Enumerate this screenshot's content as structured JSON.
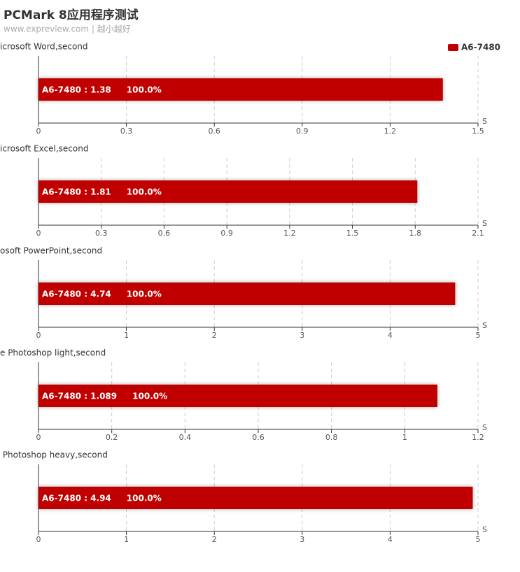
{
  "header": {
    "title": "PCMark 8应用程序测试",
    "subtitle": "www.expreview.com | 越小越好"
  },
  "legend_position": "top-right",
  "chart_data": [
    {
      "type": "bar",
      "orientation": "horizontal",
      "title": "icrosoft Word,second",
      "xlabel": "S",
      "series": [
        {
          "name": "A6-7480",
          "color": "#c00000",
          "values": [
            1.38
          ],
          "value_labels": [
            "A6-7480 : 1.38"
          ],
          "percents": [
            100
          ],
          "percent_labels": [
            "100.0%"
          ]
        }
      ],
      "xlim": [
        0,
        1.5
      ],
      "xticks": [
        0,
        0.3,
        0.6,
        0.9,
        1.2,
        1.5
      ],
      "grid": true
    },
    {
      "type": "bar",
      "orientation": "horizontal",
      "title": "icrosoft Excel,second",
      "xlabel": "S",
      "series": [
        {
          "name": "A6-7480",
          "color": "#c00000",
          "values": [
            1.81
          ],
          "value_labels": [
            "A6-7480 : 1.81"
          ],
          "percents": [
            100
          ],
          "percent_labels": [
            "100.0%"
          ]
        }
      ],
      "xlim": [
        0,
        2.1
      ],
      "xticks": [
        0,
        0.3,
        0.6,
        0.9,
        1.2,
        1.5,
        1.8,
        2.1
      ],
      "grid": true
    },
    {
      "type": "bar",
      "orientation": "horizontal",
      "title": "osoft PowerPoint,second",
      "xlabel": "S",
      "series": [
        {
          "name": "A6-7480",
          "color": "#c00000",
          "values": [
            4.74
          ],
          "value_labels": [
            "A6-7480 : 4.74"
          ],
          "percents": [
            100
          ],
          "percent_labels": [
            "100.0%"
          ]
        }
      ],
      "xlim": [
        0,
        5
      ],
      "xticks": [
        0,
        1,
        2,
        3,
        4,
        5
      ],
      "grid": true
    },
    {
      "type": "bar",
      "orientation": "horizontal",
      "title": "e Photoshop light,second",
      "xlabel": "S",
      "series": [
        {
          "name": "A6-7480",
          "color": "#c00000",
          "values": [
            1.089
          ],
          "value_labels": [
            "A6-7480 : 1.089"
          ],
          "percents": [
            100
          ],
          "percent_labels": [
            "100.0%"
          ]
        }
      ],
      "xlim": [
        0,
        1.2
      ],
      "xticks": [
        0,
        0.2,
        0.4,
        0.6,
        0.8,
        1,
        1.2
      ],
      "grid": true
    },
    {
      "type": "bar",
      "orientation": "horizontal",
      "title": " Photoshop heavy,second",
      "xlabel": "S",
      "series": [
        {
          "name": "A6-7480",
          "color": "#c00000",
          "values": [
            4.94
          ],
          "value_labels": [
            "A6-7480 : 4.94"
          ],
          "percents": [
            100
          ],
          "percent_labels": [
            "100.0%"
          ]
        }
      ],
      "xlim": [
        0,
        5
      ],
      "xticks": [
        0,
        1,
        2,
        3,
        4,
        5
      ],
      "grid": true
    }
  ]
}
